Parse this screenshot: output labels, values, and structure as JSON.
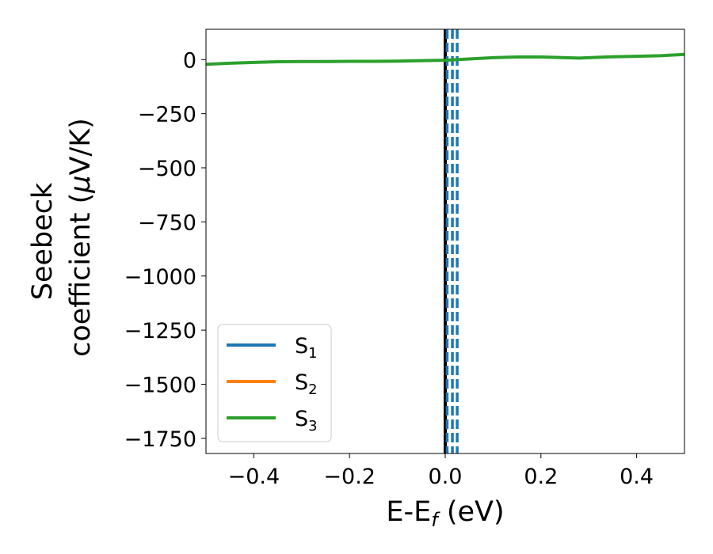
{
  "chart_data": {
    "type": "line",
    "xlabel_main": "E-E",
    "xlabel_sub": "f",
    "xlabel_unit": " (eV)",
    "ylabel_line1": "Seebeck",
    "ylabel_line2_text": "coefficient  (",
    "ylabel_line2_mu": "μ",
    "ylabel_line2_unit": "V/K)",
    "xlim": [
      -0.5,
      0.5
    ],
    "ylim": [
      -1820,
      140
    ],
    "x_ticks": [
      -0.4,
      -0.2,
      0.0,
      0.2,
      0.4
    ],
    "x_tick_labels": [
      "−0.4",
      "−0.2",
      "0.0",
      "0.2",
      "0.4"
    ],
    "y_ticks": [
      0,
      -250,
      -500,
      -750,
      -1000,
      -1250,
      -1500,
      -1750
    ],
    "y_tick_labels": [
      "0",
      "−250",
      "−500",
      "−750",
      "−1000",
      "−1250",
      "−1500",
      "−1750"
    ],
    "grid": false,
    "legend_position": "lower-left",
    "series": [
      {
        "name": "S",
        "sub": "1",
        "color": "#1f77b4",
        "x": [],
        "y": []
      },
      {
        "name": "S",
        "sub": "2",
        "color": "#ff7f0e",
        "x": [],
        "y": []
      },
      {
        "name": "S",
        "sub": "3",
        "color": "#2ca02c",
        "x": [
          -0.5,
          -0.45,
          -0.4,
          -0.35,
          -0.3,
          -0.25,
          -0.2,
          -0.15,
          -0.1,
          -0.05,
          0.0,
          0.05,
          0.1,
          0.15,
          0.2,
          0.25,
          0.28,
          0.3,
          0.35,
          0.4,
          0.45,
          0.5
        ],
        "y": [
          -22,
          -17,
          -13,
          -10,
          -9,
          -9,
          -8,
          -8,
          -7,
          -5,
          -3,
          3,
          9,
          12,
          12,
          9,
          7,
          9,
          13,
          15,
          18,
          24
        ]
      }
    ],
    "vertical_lines": [
      {
        "x": 0.0,
        "color": "#000000",
        "style": "solid"
      },
      {
        "x": 0.004,
        "color": "#1f77b4",
        "style": "dashed"
      },
      {
        "x": 0.015,
        "color": "#1f77b4",
        "style": "dashed"
      },
      {
        "x": 0.025,
        "color": "#1f77b4",
        "style": "dashed"
      }
    ]
  }
}
